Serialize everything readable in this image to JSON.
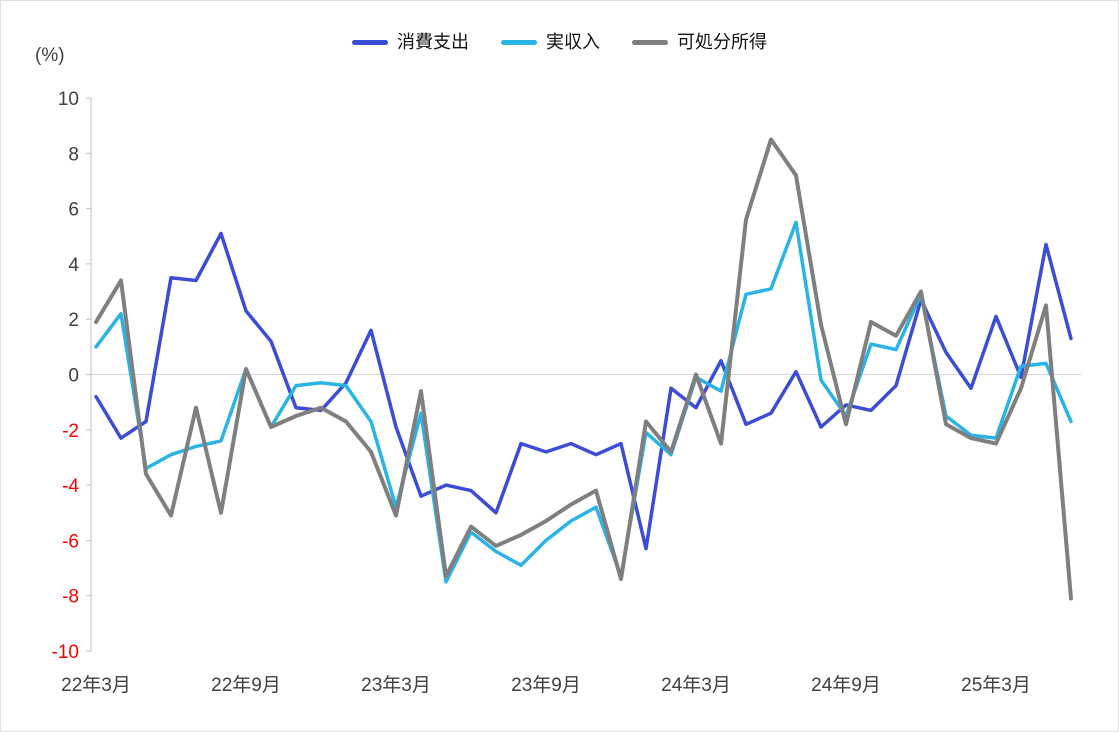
{
  "chart_data": {
    "type": "line",
    "title": "",
    "ylabel": "(%)",
    "ylim": [
      -10,
      10
    ],
    "yticks": [
      10,
      8,
      6,
      4,
      2,
      0,
      -2,
      -4,
      -6,
      -8,
      -10
    ],
    "grid": "zero-line-only",
    "legend_position": "top-center",
    "axis_color": "#bfbfbf",
    "zero_line_color": "#d6d6d6",
    "tick_label_color": "#404040",
    "negative_tick_label_color": "#ff0000",
    "x_months": [
      "22年3月",
      "22年4月",
      "22年5月",
      "22年6月",
      "22年7月",
      "22年8月",
      "22年9月",
      "22年10月",
      "22年11月",
      "22年12月",
      "23年1月",
      "23年2月",
      "23年3月",
      "23年4月",
      "23年5月",
      "23年6月",
      "23年7月",
      "23年8月",
      "23年9月",
      "23年10月",
      "23年11月",
      "23年12月",
      "24年1月",
      "24年2月",
      "24年3月",
      "24年4月",
      "24年5月",
      "24年6月",
      "24年7月",
      "24年8月",
      "24年9月",
      "24年10月",
      "24年11月",
      "24年12月",
      "25年1月",
      "25年2月",
      "25年3月",
      "25年4月",
      "25年5月",
      "25年6月"
    ],
    "x_tick_indices": [
      0,
      6,
      12,
      18,
      24,
      30,
      36
    ],
    "x_tick_labels": [
      "22年3月",
      "22年9月",
      "23年3月",
      "23年9月",
      "24年3月",
      "24年9月",
      "25年3月"
    ],
    "series": [
      {
        "name": "消費支出",
        "color": "#3b4cd6",
        "width": 3.5,
        "values": [
          -0.8,
          -2.3,
          -1.7,
          3.5,
          3.4,
          5.1,
          2.3,
          1.2,
          -1.2,
          -1.3,
          -0.3,
          1.6,
          -1.9,
          -4.4,
          -4.0,
          -4.2,
          -5.0,
          -2.5,
          -2.8,
          -2.5,
          -2.9,
          -2.5,
          -6.3,
          -0.5,
          -1.2,
          0.5,
          -1.8,
          -1.4,
          0.1,
          -1.9,
          -1.1,
          -1.3,
          -0.4,
          2.7,
          0.8,
          -0.5,
          2.1,
          -0.1,
          4.7,
          1.3
        ]
      },
      {
        "name": "実収入",
        "color": "#29b3e6",
        "width": 3.5,
        "values": [
          1.0,
          2.2,
          -3.4,
          -2.9,
          -2.6,
          -2.4,
          0.2,
          -1.9,
          -0.4,
          -0.3,
          -0.4,
          -1.7,
          -4.8,
          -1.4,
          -7.5,
          -5.7,
          -6.4,
          -6.9,
          -6.0,
          -5.3,
          -4.8,
          -7.3,
          -2.1,
          -2.9,
          -0.1,
          -0.6,
          2.9,
          3.1,
          5.5,
          -0.2,
          -1.5,
          1.1,
          0.9,
          2.9,
          -1.5,
          -2.2,
          -2.3,
          0.3,
          0.4,
          -1.7
        ]
      },
      {
        "name": "可処分所得",
        "color": "#7f7f7f",
        "width": 4,
        "values": [
          1.9,
          3.4,
          -3.6,
          -5.1,
          -1.2,
          -5.0,
          0.2,
          -1.9,
          -1.5,
          -1.2,
          -1.7,
          -2.8,
          -5.1,
          -0.6,
          -7.3,
          -5.5,
          -6.2,
          -5.8,
          -5.3,
          -4.7,
          -4.2,
          -7.4,
          -1.7,
          -2.8,
          0.0,
          -2.5,
          5.6,
          8.5,
          7.2,
          1.8,
          -1.8,
          1.9,
          1.4,
          3.0,
          -1.8,
          -2.3,
          -2.5,
          -0.5,
          2.5,
          -8.1
        ]
      }
    ]
  }
}
